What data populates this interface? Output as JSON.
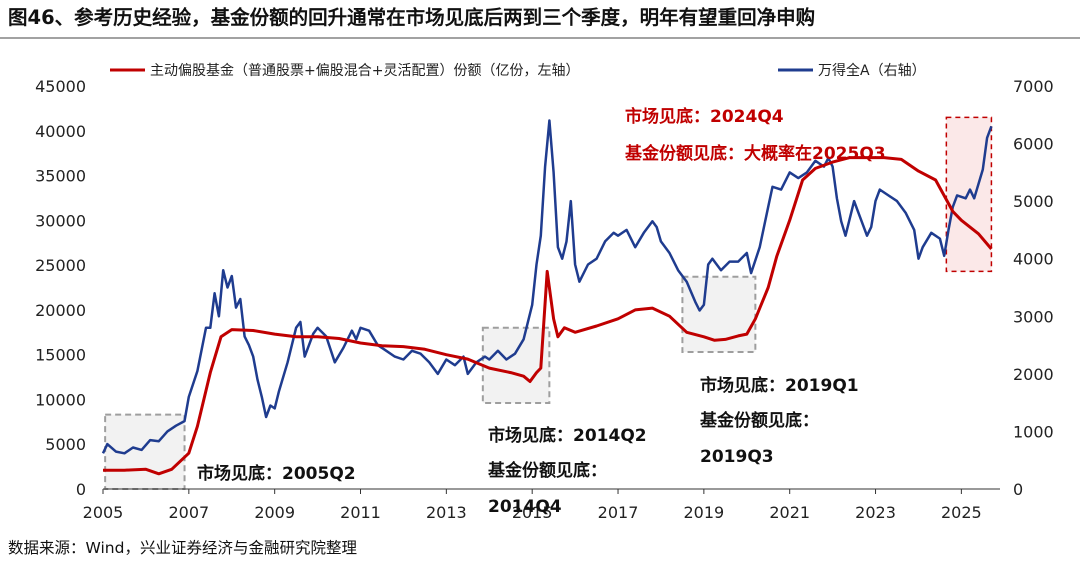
{
  "header": {
    "title": "图46、参考历史经验，基金份额的回升通常在市场见底后两到三个季度，明年有望重回净申购"
  },
  "footer": {
    "source": "数据来源：Wind，兴业证券经济与金融研究院整理"
  },
  "colors": {
    "fund_line": "#c00000",
    "index_line": "#1f3c8f",
    "box_fill": "#f2f2f2",
    "box_border": "#9e9e9e",
    "highlight_fill": "#fbe8e8",
    "highlight_border": "#c00000"
  },
  "chart_data": {
    "type": "line",
    "legend": {
      "position": "top",
      "items": [
        "主动偏股基金（普通股票+偏股混合+灵活配置）份额（亿份，左轴）",
        "万得全A（右轴）"
      ]
    },
    "x_axis": {
      "range": [
        2005.0,
        2025.9
      ],
      "ticks": [
        "2005",
        "2007",
        "2009",
        "2011",
        "2013",
        "2015",
        "2017",
        "2019",
        "2021",
        "2023",
        "2025"
      ]
    },
    "y_left": {
      "range": [
        0,
        45000
      ],
      "ticks": [
        "0",
        "5000",
        "10000",
        "15000",
        "20000",
        "25000",
        "30000",
        "35000",
        "40000",
        "45000"
      ]
    },
    "y_right": {
      "range": [
        0,
        7000
      ],
      "ticks": [
        "0",
        "1000",
        "2000",
        "3000",
        "4000",
        "5000",
        "6000",
        "7000"
      ]
    },
    "series": [
      {
        "name": "主动偏股基金（普通股票+偏股混合+灵活配置）份额（亿份，左轴）",
        "axis": "left",
        "points": [
          [
            2005.0,
            2100
          ],
          [
            2005.5,
            2100
          ],
          [
            2006.0,
            2200
          ],
          [
            2006.3,
            1700
          ],
          [
            2006.6,
            2200
          ],
          [
            2007.0,
            4000
          ],
          [
            2007.2,
            7000
          ],
          [
            2007.5,
            13000
          ],
          [
            2007.75,
            17000
          ],
          [
            2008.0,
            17800
          ],
          [
            2008.5,
            17700
          ],
          [
            2009.0,
            17300
          ],
          [
            2009.5,
            17000
          ],
          [
            2010.0,
            17000
          ],
          [
            2010.5,
            16800
          ],
          [
            2011.0,
            16300
          ],
          [
            2011.5,
            16000
          ],
          [
            2012.0,
            15900
          ],
          [
            2012.5,
            15600
          ],
          [
            2013.0,
            15000
          ],
          [
            2013.5,
            14500
          ],
          [
            2014.0,
            13500
          ],
          [
            2014.5,
            13000
          ],
          [
            2014.8,
            12600
          ],
          [
            2014.95,
            12000
          ],
          [
            2015.1,
            13000
          ],
          [
            2015.2,
            13500
          ],
          [
            2015.35,
            24300
          ],
          [
            2015.5,
            19000
          ],
          [
            2015.6,
            17000
          ],
          [
            2015.75,
            18000
          ],
          [
            2016.0,
            17500
          ],
          [
            2016.5,
            18200
          ],
          [
            2017.0,
            19000
          ],
          [
            2017.4,
            20000
          ],
          [
            2017.8,
            20200
          ],
          [
            2018.2,
            19300
          ],
          [
            2018.6,
            17500
          ],
          [
            2019.0,
            17000
          ],
          [
            2019.25,
            16600
          ],
          [
            2019.5,
            16700
          ],
          [
            2019.8,
            17100
          ],
          [
            2020.0,
            17300
          ],
          [
            2020.2,
            19000
          ],
          [
            2020.5,
            22500
          ],
          [
            2020.7,
            26000
          ],
          [
            2021.0,
            30000
          ],
          [
            2021.3,
            34500
          ],
          [
            2021.6,
            35800
          ],
          [
            2022.0,
            36500
          ],
          [
            2022.4,
            37000
          ],
          [
            2022.8,
            37000
          ],
          [
            2023.2,
            37000
          ],
          [
            2023.6,
            36800
          ],
          [
            2024.0,
            35500
          ],
          [
            2024.4,
            34500
          ],
          [
            2024.8,
            31000
          ],
          [
            2025.0,
            30000
          ],
          [
            2025.4,
            28500
          ],
          [
            2025.7,
            26800
          ]
        ]
      },
      {
        "name": "万得全A（右轴）",
        "axis": "right",
        "points": [
          [
            2005.0,
            620
          ],
          [
            2005.1,
            780
          ],
          [
            2005.3,
            650
          ],
          [
            2005.5,
            620
          ],
          [
            2005.7,
            720
          ],
          [
            2005.9,
            680
          ],
          [
            2006.1,
            850
          ],
          [
            2006.3,
            830
          ],
          [
            2006.5,
            1000
          ],
          [
            2006.7,
            1100
          ],
          [
            2006.9,
            1180
          ],
          [
            2007.0,
            1600
          ],
          [
            2007.2,
            2050
          ],
          [
            2007.4,
            2800
          ],
          [
            2007.5,
            2800
          ],
          [
            2007.6,
            3400
          ],
          [
            2007.7,
            3000
          ],
          [
            2007.8,
            3800
          ],
          [
            2007.9,
            3500
          ],
          [
            2008.0,
            3700
          ],
          [
            2008.1,
            3150
          ],
          [
            2008.2,
            3300
          ],
          [
            2008.3,
            2650
          ],
          [
            2008.4,
            2500
          ],
          [
            2008.5,
            2300
          ],
          [
            2008.6,
            1900
          ],
          [
            2008.7,
            1600
          ],
          [
            2008.8,
            1250
          ],
          [
            2008.9,
            1450
          ],
          [
            2009.0,
            1400
          ],
          [
            2009.1,
            1700
          ],
          [
            2009.3,
            2200
          ],
          [
            2009.5,
            2800
          ],
          [
            2009.6,
            2900
          ],
          [
            2009.7,
            2300
          ],
          [
            2009.9,
            2700
          ],
          [
            2010.0,
            2800
          ],
          [
            2010.2,
            2650
          ],
          [
            2010.4,
            2200
          ],
          [
            2010.6,
            2450
          ],
          [
            2010.8,
            2750
          ],
          [
            2010.9,
            2600
          ],
          [
            2011.0,
            2800
          ],
          [
            2011.2,
            2750
          ],
          [
            2011.4,
            2500
          ],
          [
            2011.6,
            2400
          ],
          [
            2011.8,
            2300
          ],
          [
            2012.0,
            2250
          ],
          [
            2012.2,
            2400
          ],
          [
            2012.4,
            2350
          ],
          [
            2012.6,
            2200
          ],
          [
            2012.8,
            2000
          ],
          [
            2013.0,
            2250
          ],
          [
            2013.2,
            2150
          ],
          [
            2013.4,
            2300
          ],
          [
            2013.5,
            2000
          ],
          [
            2013.7,
            2200
          ],
          [
            2013.9,
            2300
          ],
          [
            2014.0,
            2250
          ],
          [
            2014.2,
            2400
          ],
          [
            2014.4,
            2250
          ],
          [
            2014.6,
            2350
          ],
          [
            2014.8,
            2600
          ],
          [
            2015.0,
            3200
          ],
          [
            2015.1,
            3900
          ],
          [
            2015.2,
            4400
          ],
          [
            2015.3,
            5600
          ],
          [
            2015.4,
            6400
          ],
          [
            2015.5,
            5500
          ],
          [
            2015.6,
            4200
          ],
          [
            2015.7,
            4000
          ],
          [
            2015.8,
            4300
          ],
          [
            2015.9,
            5000
          ],
          [
            2016.0,
            3900
          ],
          [
            2016.1,
            3600
          ],
          [
            2016.3,
            3900
          ],
          [
            2016.5,
            4000
          ],
          [
            2016.7,
            4300
          ],
          [
            2016.9,
            4450
          ],
          [
            2017.0,
            4400
          ],
          [
            2017.2,
            4500
          ],
          [
            2017.4,
            4200
          ],
          [
            2017.6,
            4450
          ],
          [
            2017.8,
            4650
          ],
          [
            2017.9,
            4550
          ],
          [
            2018.0,
            4300
          ],
          [
            2018.2,
            4100
          ],
          [
            2018.4,
            3800
          ],
          [
            2018.6,
            3600
          ],
          [
            2018.8,
            3250
          ],
          [
            2018.9,
            3100
          ],
          [
            2019.0,
            3200
          ],
          [
            2019.1,
            3900
          ],
          [
            2019.2,
            4000
          ],
          [
            2019.4,
            3800
          ],
          [
            2019.6,
            3950
          ],
          [
            2019.8,
            3950
          ],
          [
            2020.0,
            4100
          ],
          [
            2020.1,
            3750
          ],
          [
            2020.3,
            4200
          ],
          [
            2020.5,
            4900
          ],
          [
            2020.6,
            5250
          ],
          [
            2020.8,
            5200
          ],
          [
            2021.0,
            5500
          ],
          [
            2021.2,
            5400
          ],
          [
            2021.4,
            5500
          ],
          [
            2021.6,
            5700
          ],
          [
            2021.8,
            5600
          ],
          [
            2021.9,
            5750
          ],
          [
            2022.0,
            5600
          ],
          [
            2022.1,
            5050
          ],
          [
            2022.2,
            4650
          ],
          [
            2022.3,
            4400
          ],
          [
            2022.5,
            5000
          ],
          [
            2022.6,
            4800
          ],
          [
            2022.8,
            4400
          ],
          [
            2022.9,
            4550
          ],
          [
            2023.0,
            5000
          ],
          [
            2023.1,
            5200
          ],
          [
            2023.3,
            5100
          ],
          [
            2023.5,
            5000
          ],
          [
            2023.7,
            4800
          ],
          [
            2023.9,
            4500
          ],
          [
            2024.0,
            4000
          ],
          [
            2024.1,
            4200
          ],
          [
            2024.3,
            4450
          ],
          [
            2024.5,
            4350
          ],
          [
            2024.6,
            4050
          ],
          [
            2024.7,
            4500
          ],
          [
            2024.8,
            4900
          ],
          [
            2024.9,
            5100
          ],
          [
            2025.1,
            5050
          ],
          [
            2025.2,
            5200
          ],
          [
            2025.3,
            5050
          ],
          [
            2025.5,
            5550
          ],
          [
            2025.6,
            6100
          ],
          [
            2025.7,
            6300
          ]
        ]
      }
    ],
    "annotations": [
      {
        "id": "2005",
        "text_lines": [
          "市场见底：2005Q2"
        ],
        "color": "black",
        "box": {
          "x": [
            2005.05,
            2006.9
          ],
          "y_left": [
            0,
            8300
          ]
        }
      },
      {
        "id": "2014",
        "text_lines": [
          "市场见底：2014Q2",
          "基金份额见底：",
          "2014Q4"
        ],
        "color": "black",
        "box": {
          "x": [
            2013.85,
            2015.4
          ],
          "y_left": [
            9600,
            18000
          ]
        }
      },
      {
        "id": "2019",
        "text_lines": [
          "市场见底：2019Q1",
          "基金份额见底：",
          "2019Q3"
        ],
        "color": "black",
        "box": {
          "x": [
            2018.5,
            2020.2
          ],
          "y_left": [
            15300,
            23700
          ]
        }
      },
      {
        "id": "2024",
        "text_lines": [
          "市场见底：2024Q4",
          "基金份额见底：大概率在2025Q3"
        ],
        "color": "red",
        "box": {
          "x": [
            2024.65,
            2025.7
          ],
          "y_left": [
            24300,
            41500
          ]
        }
      }
    ]
  }
}
